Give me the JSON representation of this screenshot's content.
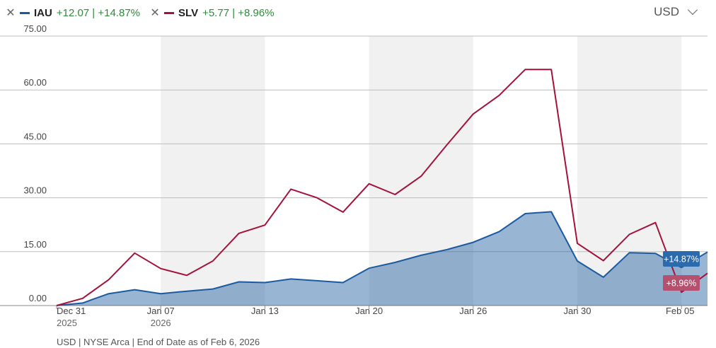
{
  "legend": [
    {
      "symbol": "IAU",
      "change": "+12.07 | +14.87%",
      "color": "#1c5aa0"
    },
    {
      "symbol": "SLV",
      "change": "+5.77 | +8.96%",
      "color": "#a3123a"
    }
  ],
  "currency": "USD",
  "footer": "USD | NYSE Arca | End of Date as of Feb 6, 2026",
  "chart_data": {
    "type": "line",
    "y_ticks": [
      "75.00",
      "60.00",
      "45.00",
      "30.00",
      "15.00",
      "0.00"
    ],
    "ylim": [
      0,
      75
    ],
    "x_tick_labels": [
      {
        "label": "Dec 31",
        "sub": "2025"
      },
      {
        "label": "Jan 07",
        "sub": "2026"
      },
      {
        "label": "Jan 13",
        "sub": ""
      },
      {
        "label": "Jan 20",
        "sub": ""
      },
      {
        "label": "Jan 26",
        "sub": ""
      },
      {
        "label": "Jan 30",
        "sub": ""
      },
      {
        "label": "Feb 05",
        "sub": ""
      }
    ],
    "x_tick_index": [
      0,
      4,
      8,
      12,
      16,
      20,
      24
    ],
    "series": [
      {
        "name": "IAU",
        "end_label": "+14.87%",
        "values": [
          0,
          0.7,
          3.3,
          4.4,
          3.3,
          4.0,
          4.6,
          6.6,
          6.4,
          7.4,
          6.9,
          6.4,
          10.4,
          12.0,
          14.0,
          15.6,
          17.6,
          20.6,
          25.6,
          26.1,
          12.4,
          7.9,
          14.7,
          14.5,
          10.6,
          14.9
        ]
      },
      {
        "name": "SLV",
        "end_label": "+8.96%",
        "values": [
          0,
          2.0,
          7.2,
          14.6,
          10.3,
          8.4,
          12.4,
          20.1,
          22.4,
          32.4,
          30.0,
          26.0,
          33.9,
          30.9,
          36.0,
          44.8,
          53.3,
          58.5,
          65.7,
          65.7,
          17.3,
          12.5,
          19.8,
          23.1,
          3.7,
          9.0
        ]
      }
    ]
  }
}
